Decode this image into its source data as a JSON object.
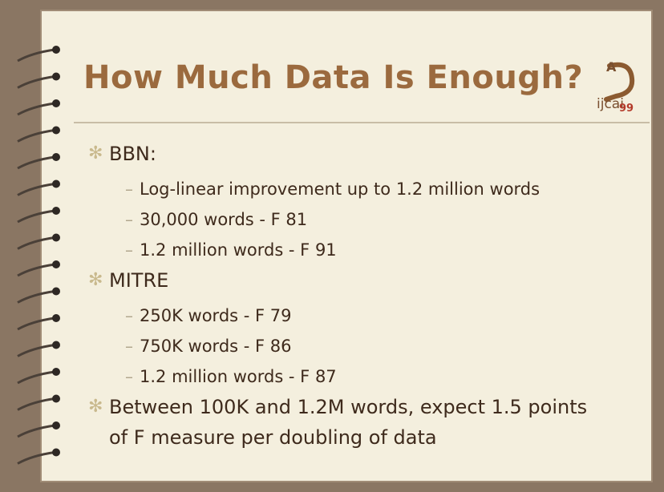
{
  "title": "How Much Data Is Enough?",
  "logo": {
    "mark": "A",
    "name": "ijcai",
    "year": "99"
  },
  "bullets": [
    {
      "text": "BBN:",
      "items": [
        "Log-linear improvement up to 1.2 million words",
        "30,000 words - F 81",
        "1.2 million words - F 91"
      ]
    },
    {
      "text": "MITRE",
      "items": [
        "250K words - F 79",
        "750K words - F 86",
        "1.2 million words - F 87"
      ]
    },
    {
      "text": "Between 100K and 1.2M words, expect 1.5 points of F measure per doubling of data"
    }
  ]
}
